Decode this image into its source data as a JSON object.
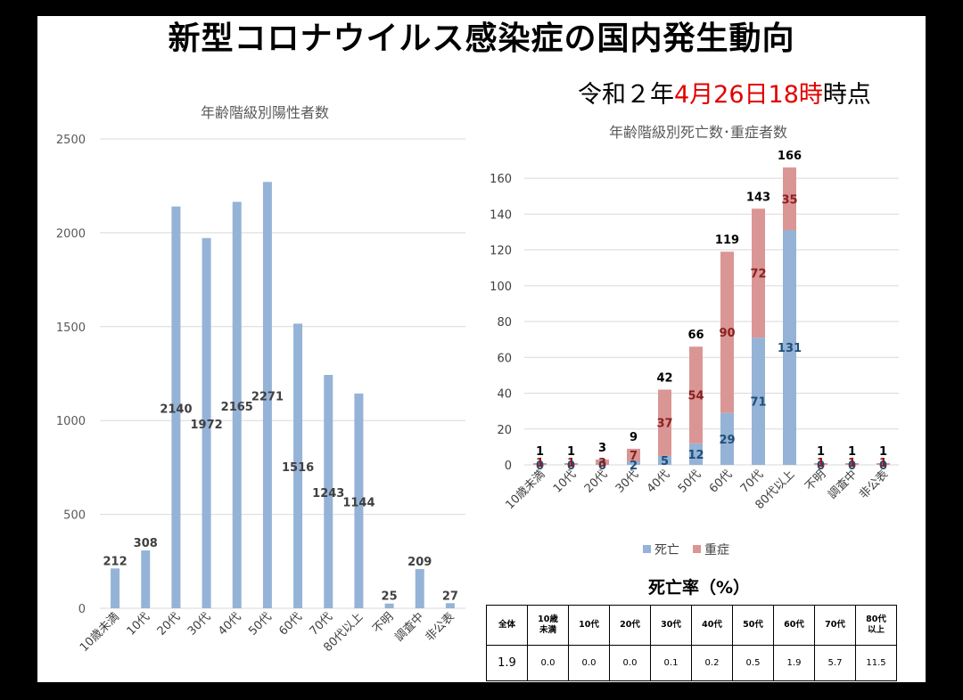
{
  "title": "新型コロナウイルス感染症の国内発生動向",
  "timestamp": {
    "prefix": "令和２年",
    "date": "4月26日18時",
    "suffix": "時点"
  },
  "chart_data": [
    {
      "type": "bar",
      "title": "年齢階級別陽性者数",
      "categories": [
        "10歳未満",
        "10代",
        "20代",
        "30代",
        "40代",
        "50代",
        "60代",
        "70代",
        "80代以上",
        "不明",
        "調査中",
        "非公表"
      ],
      "values": [
        212,
        308,
        2140,
        1972,
        2165,
        2271,
        1516,
        1243,
        1144,
        25,
        209,
        27
      ],
      "ylim": [
        0,
        2500
      ],
      "yticks": [
        0,
        500,
        1000,
        1500,
        2000,
        2500
      ],
      "color": "#95b3d7",
      "grid": true
    },
    {
      "type": "bar",
      "stacked": true,
      "title": "年齢階級別死亡数･重症者数",
      "categories": [
        "10歳未満",
        "10代",
        "20代",
        "30代",
        "40代",
        "50代",
        "60代",
        "70代",
        "80代以上",
        "不明",
        "調査中",
        "非公表"
      ],
      "series": [
        {
          "name": "死亡",
          "color": "#95b3d7",
          "values": [
            0,
            0,
            0,
            2,
            5,
            12,
            29,
            71,
            131,
            0,
            0,
            0
          ]
        },
        {
          "name": "重症",
          "color": "#da9694",
          "values": [
            1,
            1,
            3,
            7,
            37,
            54,
            90,
            72,
            35,
            1,
            1,
            1
          ]
        }
      ],
      "totals": [
        1,
        1,
        3,
        9,
        42,
        66,
        119,
        143,
        166,
        1,
        1,
        1
      ],
      "ylim": [
        0,
        170
      ],
      "yticks": [
        0,
        20,
        40,
        60,
        80,
        100,
        120,
        140,
        160
      ],
      "grid": true,
      "legend_position": "bottom"
    }
  ],
  "rate_table": {
    "title": "死亡率（%）",
    "headers": [
      "全体",
      "10歳\n未満",
      "10代",
      "20代",
      "30代",
      "40代",
      "50代",
      "60代",
      "70代",
      "80代\n以上"
    ],
    "values": [
      "1.9",
      "0.0",
      "0.0",
      "0.0",
      "0.1",
      "0.2",
      "0.5",
      "1.9",
      "5.7",
      "11.5"
    ]
  }
}
